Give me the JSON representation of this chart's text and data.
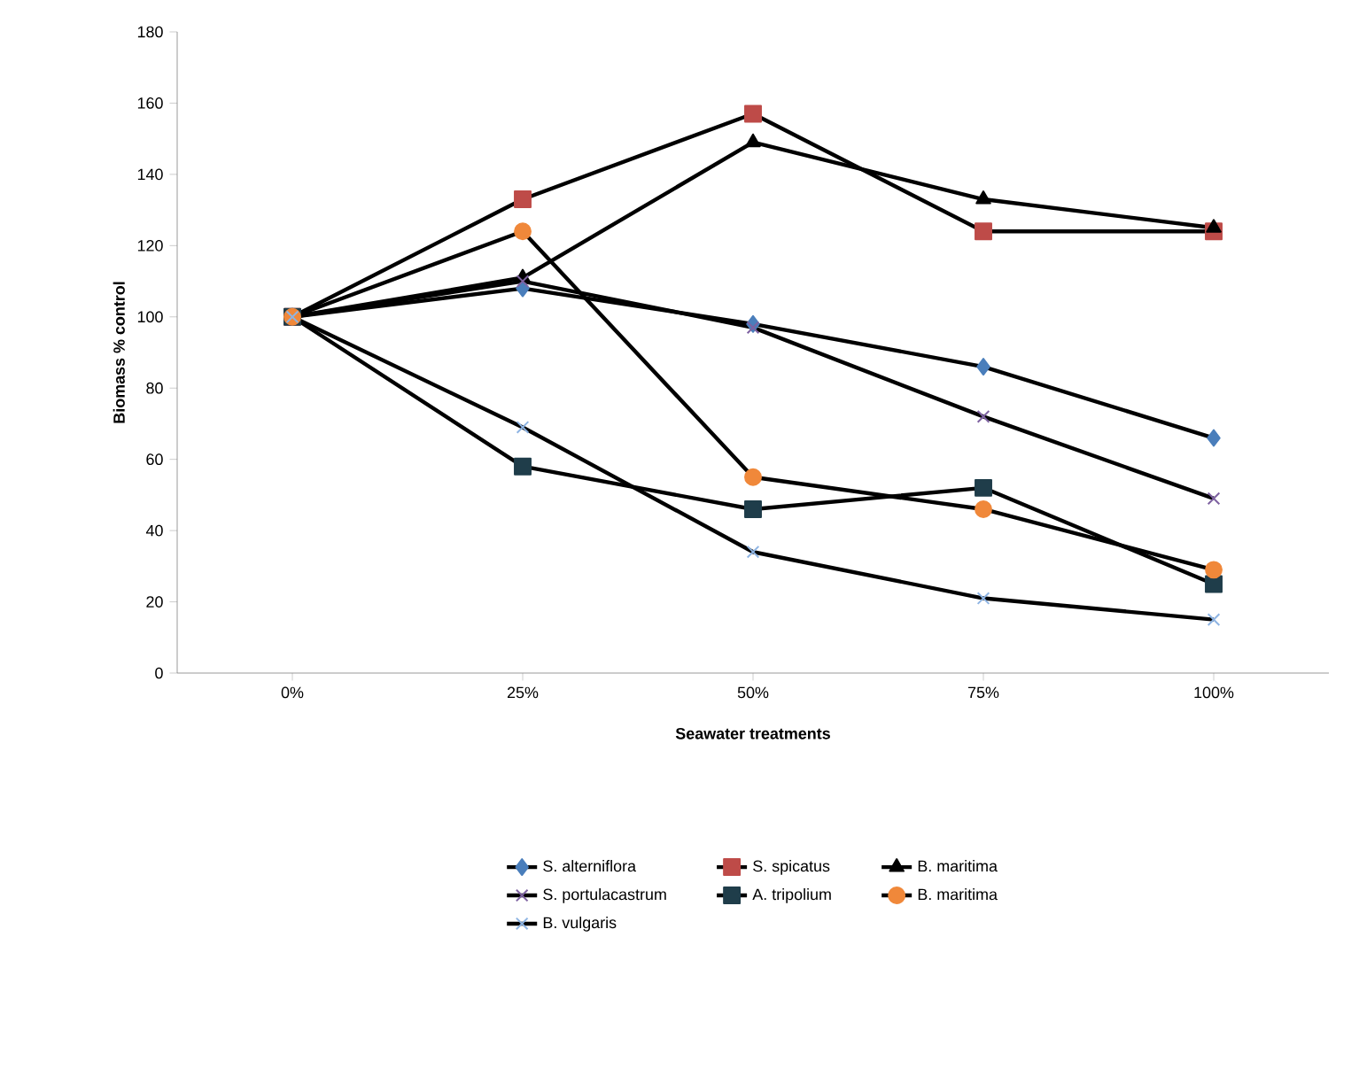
{
  "chart_data": {
    "type": "line",
    "xlabel": "Seawater treatments",
    "ylabel": "Biomass % control",
    "categories": [
      "0%",
      "25%",
      "50%",
      "75%",
      "100%"
    ],
    "ylim": [
      0,
      180
    ],
    "yticks": [
      0,
      20,
      40,
      60,
      80,
      100,
      120,
      140,
      160,
      180
    ],
    "grid": false,
    "legend": "bottom",
    "series": [
      {
        "name": "S. alterniflora",
        "color": "#4a7ebb",
        "marker": "diamond",
        "values": [
          100,
          108,
          98,
          86,
          66
        ]
      },
      {
        "name": "S. spicatus",
        "color": "#be4b48",
        "marker": "square",
        "values": [
          100,
          133,
          157,
          124,
          124
        ]
      },
      {
        "name": "B. maritima",
        "color": "#000000",
        "marker": "triangle",
        "values": [
          100,
          111,
          149,
          133,
          125
        ]
      },
      {
        "name": "S. portulacastrum",
        "color": "#7e62a1",
        "marker": "cross",
        "values": [
          100,
          110,
          97,
          72,
          49
        ]
      },
      {
        "name": "A. tripolium",
        "color": "#1f3d4a",
        "marker": "square",
        "values": [
          100,
          58,
          46,
          52,
          25
        ]
      },
      {
        "name": "B. maritima",
        "color": "#f0883a",
        "marker": "circle",
        "values": [
          100,
          124,
          55,
          46,
          29
        ]
      },
      {
        "name": "B. vulgaris",
        "color": "#8eb4e3",
        "marker": "cross",
        "values": [
          100,
          69,
          34,
          21,
          15
        ]
      }
    ]
  }
}
